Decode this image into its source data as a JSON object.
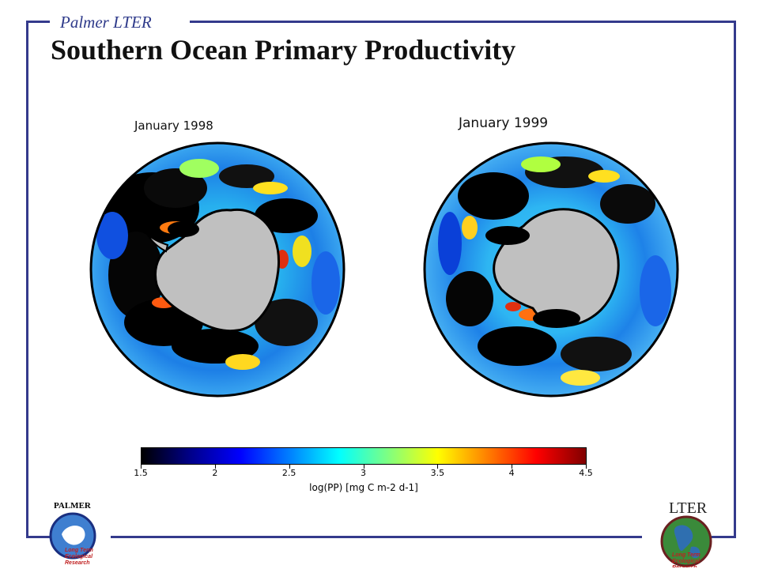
{
  "header": {
    "label": "Palmer LTER"
  },
  "title": "Southern Ocean Primary Productivity",
  "maps": [
    {
      "caption": "January 1998"
    },
    {
      "caption": "January 1999"
    }
  ],
  "colorbar": {
    "min": 1.5,
    "max": 4.5,
    "ticks": [
      "1.5",
      "2",
      "2.5",
      "3",
      "3.5",
      "4",
      "4.5"
    ],
    "label": "log(PP)  [mg C m-2 d-1]",
    "colors": [
      "#000000",
      "#00008b",
      "#0000ff",
      "#0080ff",
      "#00ffff",
      "#80ff80",
      "#ffff00",
      "#ff8000",
      "#ff0000",
      "#800000"
    ]
  },
  "logos": {
    "palmer": {
      "label": "PALMER",
      "lines": [
        "Long Term",
        "Ecological",
        "Research"
      ]
    },
    "lter": {
      "label": "LTER",
      "lines": [
        "Long Term",
        "Ecological",
        "Research"
      ]
    }
  },
  "colors": {
    "frame": "#343a8c",
    "land": "#c0c0c0",
    "no_data": "#000000"
  }
}
